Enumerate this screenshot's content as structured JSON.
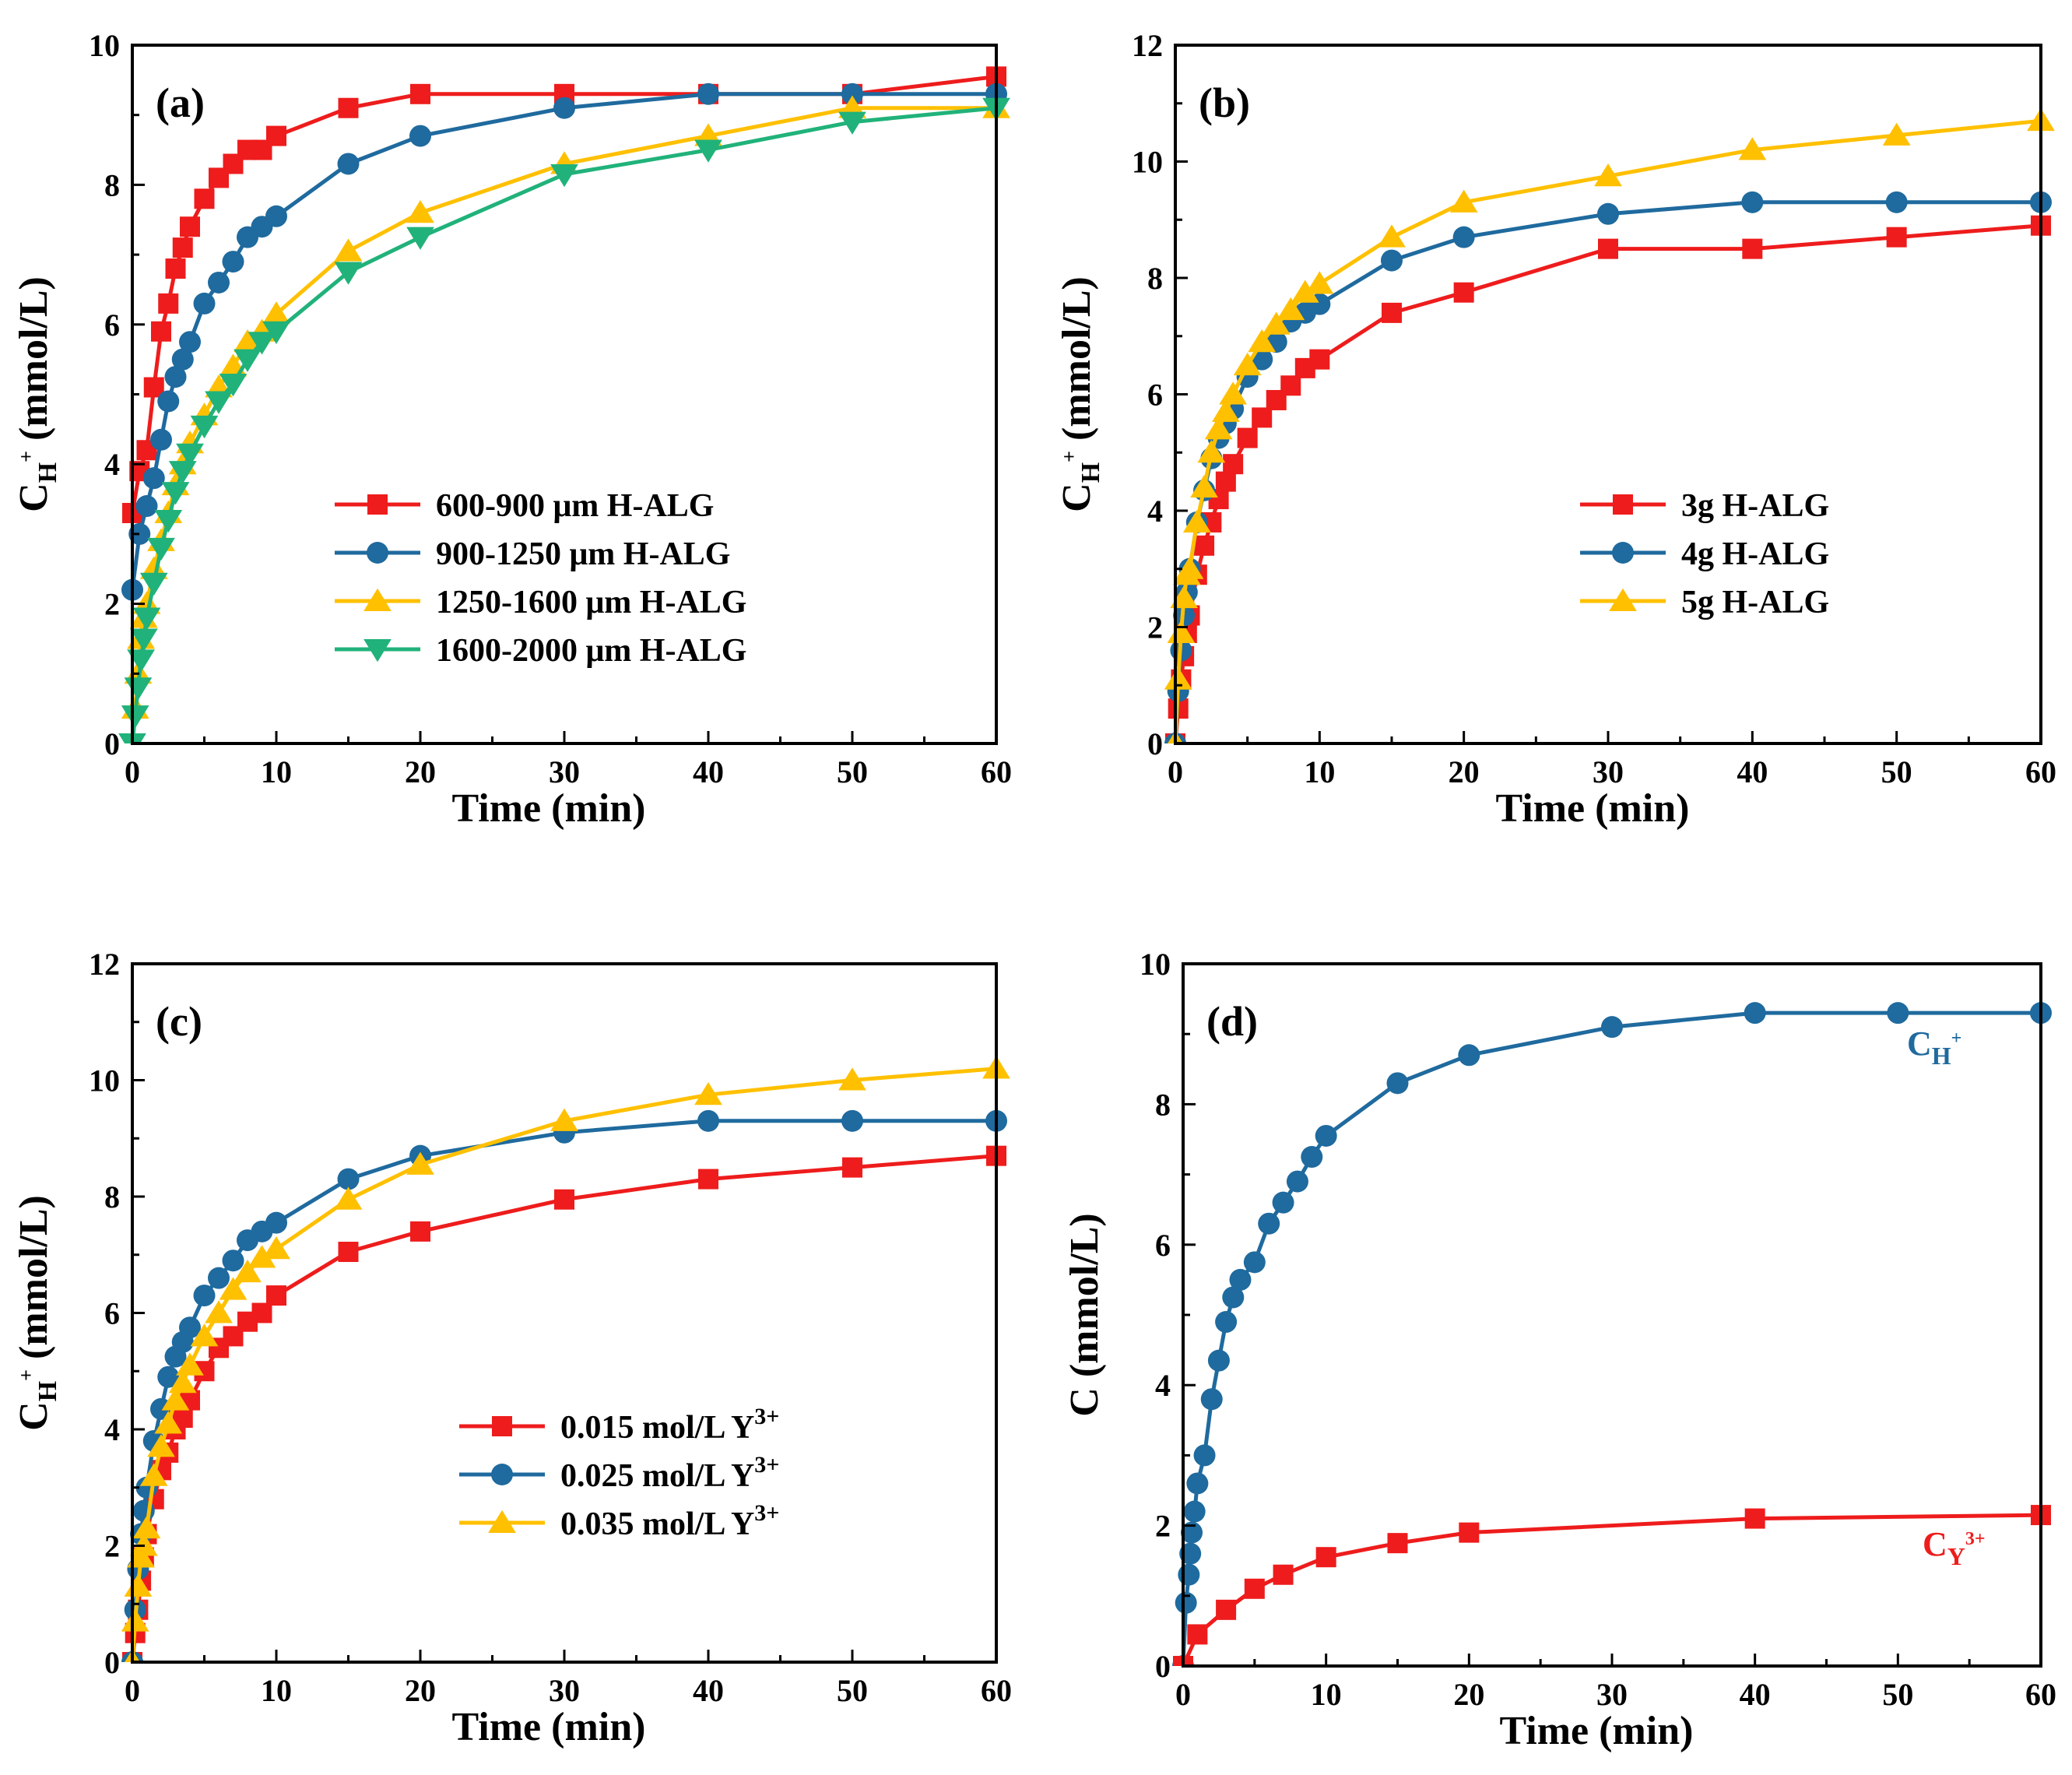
{
  "chart_data": [
    {
      "type": "line",
      "panel_label": "(a)",
      "xlabel": "Time (min)",
      "ylabel": "C",
      "ylabel_sub": "H",
      "ylabel_sup": "+",
      "ylabel_units": " (mmol/L)",
      "xlim": [
        0,
        60
      ],
      "ylim": [
        0,
        10
      ],
      "xticks": [
        0,
        10,
        20,
        30,
        40,
        50,
        60
      ],
      "yticks": [
        0,
        2,
        4,
        6,
        8,
        10
      ],
      "legend_position": "center-right",
      "series": [
        {
          "name": "600-900 μm H-ALG",
          "color": "#ee1c1c",
          "marker": "square",
          "x": [
            0,
            0.5,
            1,
            1.5,
            2,
            2.5,
            3,
            3.5,
            4,
            5,
            6,
            7,
            8,
            9,
            10,
            15,
            20,
            30,
            40,
            50,
            60
          ],
          "y": [
            3.3,
            3.9,
            4.2,
            5.1,
            5.9,
            6.3,
            6.8,
            7.1,
            7.4,
            7.8,
            8.1,
            8.3,
            8.5,
            8.5,
            8.7,
            9.1,
            9.3,
            9.3,
            9.3,
            9.3,
            9.55
          ]
        },
        {
          "name": "900-1250 μm H-ALG",
          "color": "#1f6a9e",
          "marker": "circle",
          "x": [
            0,
            0.5,
            1,
            1.5,
            2,
            2.5,
            3,
            3.5,
            4,
            5,
            6,
            7,
            8,
            9,
            10,
            15,
            20,
            30,
            40,
            50,
            60
          ],
          "y": [
            2.2,
            3.0,
            3.4,
            3.8,
            4.35,
            4.9,
            5.25,
            5.5,
            5.75,
            6.3,
            6.6,
            6.9,
            7.25,
            7.4,
            7.55,
            8.3,
            8.7,
            9.1,
            9.3,
            9.3,
            9.3
          ]
        },
        {
          "name": "1250-1600 μm H-ALG",
          "color": "#ffc000",
          "marker": "triangle-up",
          "x": [
            0,
            0.2,
            0.4,
            0.6,
            0.8,
            1,
            1.5,
            2,
            2.5,
            3,
            3.5,
            4,
            5,
            6,
            7,
            8,
            9,
            10,
            15,
            20,
            30,
            40,
            50,
            60
          ],
          "y": [
            0,
            0.5,
            1.0,
            1.5,
            1.8,
            2.0,
            2.5,
            2.9,
            3.3,
            3.7,
            4.0,
            4.3,
            4.7,
            5.1,
            5.4,
            5.75,
            5.9,
            6.15,
            7.05,
            7.6,
            8.3,
            8.7,
            9.1,
            9.1
          ]
        },
        {
          "name": "1600-2000 μm H-ALG",
          "color": "#20b27a",
          "marker": "triangle-down",
          "x": [
            0,
            0.2,
            0.4,
            0.6,
            0.8,
            1,
            1.5,
            2,
            2.5,
            3,
            3.5,
            4,
            5,
            6,
            7,
            8,
            9,
            10,
            15,
            20,
            30,
            40,
            50,
            60
          ],
          "y": [
            0,
            0.4,
            0.8,
            1.2,
            1.5,
            1.8,
            2.3,
            2.8,
            3.2,
            3.6,
            3.9,
            4.15,
            4.55,
            4.9,
            5.15,
            5.5,
            5.75,
            5.9,
            6.75,
            7.25,
            8.15,
            8.5,
            8.9,
            9.1
          ]
        }
      ]
    },
    {
      "type": "line",
      "panel_label": "(b)",
      "xlabel": "Time (min)",
      "ylabel": "C",
      "ylabel_sub": "H",
      "ylabel_sup": "+",
      "ylabel_units": " (mmol/L)",
      "xlim": [
        0,
        60
      ],
      "ylim": [
        0,
        12
      ],
      "xticks": [
        0,
        10,
        20,
        30,
        40,
        50,
        60
      ],
      "yticks": [
        0,
        2,
        4,
        6,
        8,
        10,
        12
      ],
      "legend_position": "center-right",
      "series": [
        {
          "name": "3g H-ALG",
          "color": "#ee1c1c",
          "marker": "square",
          "x": [
            0,
            0.2,
            0.4,
            0.6,
            0.8,
            1,
            1.5,
            2,
            2.5,
            3,
            3.5,
            4,
            5,
            6,
            7,
            8,
            9,
            10,
            15,
            20,
            30,
            40,
            50,
            60
          ],
          "y": [
            0,
            0.6,
            1.1,
            1.5,
            1.9,
            2.2,
            2.9,
            3.4,
            3.8,
            4.2,
            4.5,
            4.8,
            5.25,
            5.6,
            5.9,
            6.15,
            6.45,
            6.6,
            7.4,
            7.75,
            8.5,
            8.5,
            8.7,
            8.9
          ]
        },
        {
          "name": "4g H-ALG",
          "color": "#1f6a9e",
          "marker": "circle",
          "x": [
            0,
            0.2,
            0.4,
            0.6,
            0.8,
            1,
            1.5,
            2,
            2.5,
            3,
            3.5,
            4,
            5,
            6,
            7,
            8,
            9,
            10,
            15,
            20,
            30,
            40,
            50,
            60
          ],
          "y": [
            0,
            0.9,
            1.6,
            2.2,
            2.6,
            3.0,
            3.8,
            4.35,
            4.9,
            5.25,
            5.5,
            5.75,
            6.3,
            6.6,
            6.9,
            7.25,
            7.4,
            7.55,
            8.3,
            8.7,
            9.1,
            9.3,
            9.3,
            9.3
          ]
        },
        {
          "name": "5g H-ALG",
          "color": "#ffc000",
          "marker": "triangle-up",
          "x": [
            0,
            0.2,
            0.4,
            0.6,
            0.8,
            1,
            1.5,
            2,
            2.5,
            3,
            3.5,
            4,
            5,
            6,
            7,
            8,
            9,
            10,
            15,
            20,
            30,
            40,
            50,
            60
          ],
          "y": [
            0,
            1.1,
            1.9,
            2.5,
            2.9,
            3.0,
            3.8,
            4.4,
            5.0,
            5.4,
            5.7,
            6.0,
            6.5,
            6.9,
            7.2,
            7.45,
            7.75,
            7.9,
            8.7,
            9.3,
            9.75,
            10.2,
            10.45,
            10.7
          ]
        }
      ]
    },
    {
      "type": "line",
      "panel_label": "(c)",
      "xlabel": "Time (min)",
      "ylabel": "C",
      "ylabel_sub": "H",
      "ylabel_sup": "+",
      "ylabel_units": " (mmol/L)",
      "xlim": [
        0,
        60
      ],
      "ylim": [
        0,
        12
      ],
      "xticks": [
        0,
        10,
        20,
        30,
        40,
        50,
        60
      ],
      "yticks": [
        0,
        2,
        4,
        6,
        8,
        10,
        12
      ],
      "legend_position": "bottom-right",
      "series": [
        {
          "name": "0.015 mol/L Y",
          "name_sup": "3+",
          "color": "#ee1c1c",
          "marker": "square",
          "x": [
            0,
            0.2,
            0.4,
            0.6,
            0.8,
            1,
            1.5,
            2,
            2.5,
            3,
            3.5,
            4,
            5,
            6,
            7,
            8,
            9,
            10,
            15,
            20,
            30,
            40,
            50,
            60
          ],
          "y": [
            0,
            0.5,
            0.9,
            1.4,
            1.8,
            2.2,
            2.8,
            3.3,
            3.6,
            4.0,
            4.2,
            4.5,
            5.0,
            5.4,
            5.6,
            5.85,
            6.0,
            6.3,
            7.05,
            7.4,
            7.95,
            8.3,
            8.5,
            8.7
          ]
        },
        {
          "name": "0.025 mol/L Y",
          "name_sup": "3+",
          "color": "#1f6a9e",
          "marker": "circle",
          "x": [
            0,
            0.2,
            0.4,
            0.6,
            0.8,
            1,
            1.5,
            2,
            2.5,
            3,
            3.5,
            4,
            5,
            6,
            7,
            8,
            9,
            10,
            15,
            20,
            30,
            40,
            50,
            60
          ],
          "y": [
            0,
            0.9,
            1.6,
            2.2,
            2.6,
            3.0,
            3.8,
            4.35,
            4.9,
            5.25,
            5.5,
            5.75,
            6.3,
            6.6,
            6.9,
            7.25,
            7.4,
            7.55,
            8.3,
            8.7,
            9.1,
            9.3,
            9.3,
            9.3
          ]
        },
        {
          "name": "0.035 mol/L Y",
          "name_sup": "3+",
          "color": "#ffc000",
          "marker": "triangle-up",
          "x": [
            0,
            0.2,
            0.4,
            0.6,
            0.8,
            1,
            1.5,
            2,
            2.5,
            3,
            3.5,
            4,
            5,
            6,
            7,
            8,
            9,
            10,
            15,
            20,
            30,
            40,
            50,
            60
          ],
          "y": [
            0,
            0.7,
            1.3,
            1.8,
            2.0,
            2.3,
            3.2,
            3.7,
            4.1,
            4.5,
            4.8,
            5.1,
            5.6,
            6.0,
            6.4,
            6.7,
            6.95,
            7.1,
            7.95,
            8.55,
            9.3,
            9.75,
            10.0,
            10.2
          ]
        }
      ]
    },
    {
      "type": "line",
      "panel_label": "(d)",
      "xlabel": "Time (min)",
      "ylabel": "C",
      "ylabel_sub": "",
      "ylabel_sup": "",
      "ylabel_units": " (mmol/L)",
      "xlim": [
        0,
        60
      ],
      "ylim": [
        0,
        10
      ],
      "xticks": [
        0,
        10,
        20,
        30,
        40,
        50,
        60
      ],
      "yticks": [
        0,
        2,
        4,
        6,
        8,
        10
      ],
      "legend_position": "none",
      "series": [
        {
          "name": "C",
          "name_sub": "H",
          "name_sup": "+",
          "color": "#1f6a9e",
          "marker": "circle",
          "x": [
            0,
            0.2,
            0.4,
            0.5,
            0.6,
            0.8,
            1,
            1.5,
            2,
            2.5,
            3,
            3.5,
            4,
            5,
            6,
            7,
            8,
            9,
            10,
            15,
            20,
            30,
            40,
            50,
            60
          ],
          "y": [
            0,
            0.9,
            1.3,
            1.6,
            1.9,
            2.2,
            2.6,
            3.0,
            3.8,
            4.35,
            4.9,
            5.25,
            5.5,
            5.75,
            6.3,
            6.6,
            6.9,
            7.25,
            7.55,
            8.3,
            8.7,
            9.1,
            9.3,
            9.3,
            9.3
          ]
        },
        {
          "name": "C",
          "name_sub": "Y",
          "name_sup": "3+",
          "color": "#ee1c1c",
          "marker": "square",
          "x": [
            0,
            1,
            3,
            5,
            7,
            10,
            15,
            20,
            40,
            60
          ],
          "y": [
            0,
            0.45,
            0.8,
            1.1,
            1.3,
            1.55,
            1.75,
            1.9,
            2.1,
            2.15
          ]
        }
      ]
    }
  ]
}
